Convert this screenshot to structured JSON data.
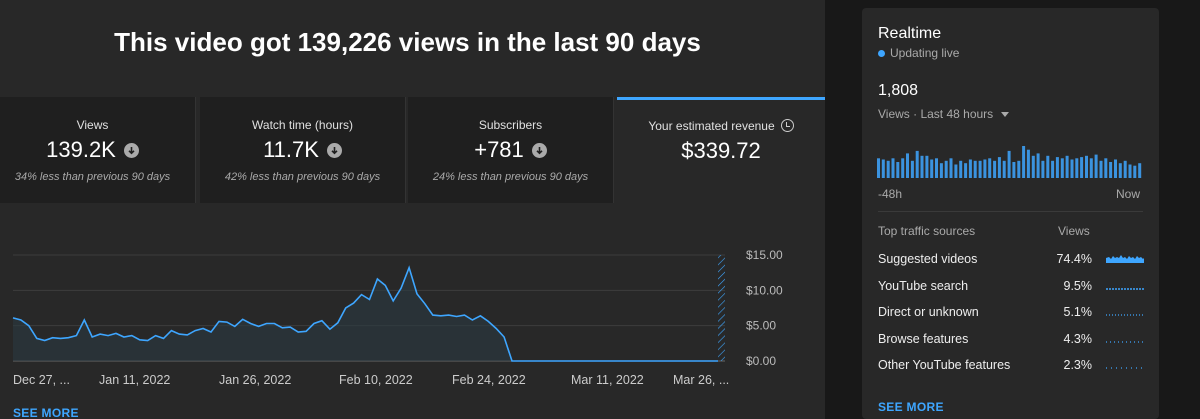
{
  "header": {
    "title": "This video got 139,226 views in the last 90 days"
  },
  "cards": [
    {
      "label": "Views",
      "value": "139.2K",
      "sub": "34% less than previous 90 days",
      "trend_icon": "arrow-down-icon"
    },
    {
      "label": "Watch time (hours)",
      "value": "11.7K",
      "sub": "42% less than previous 90 days",
      "trend_icon": "arrow-down-icon"
    },
    {
      "label": "Subscribers",
      "value": "+781",
      "sub": "24% less than previous 90 days",
      "trend_icon": "arrow-down-icon"
    },
    {
      "label": "Your estimated revenue",
      "value": "$339.72",
      "sub": "",
      "info_icon": "clock-icon",
      "selected": true
    }
  ],
  "chart_data": {
    "type": "area",
    "series": [
      {
        "color": "#3ea6ff",
        "values": [
          6.1,
          5.8,
          5.0,
          3.2,
          2.9,
          3.3,
          3.2,
          3.3,
          3.6,
          5.8,
          3.4,
          3.8,
          3.6,
          3.9,
          3.4,
          3.6,
          3.0,
          2.9,
          3.6,
          3.2,
          4.3,
          3.8,
          3.7,
          4.3,
          4.6,
          4.1,
          5.6,
          5.5,
          4.9,
          5.9,
          5.3,
          4.9,
          5.3,
          5.3,
          4.7,
          4.8,
          4.1,
          4.2,
          5.3,
          5.7,
          4.5,
          5.4,
          7.5,
          8.2,
          9.4,
          8.7,
          11.6,
          10.7,
          8.5,
          10.3,
          13.2,
          9.5,
          8.1,
          6.5,
          6.4,
          6.5,
          6.3,
          6.5,
          5.8,
          6.4,
          5.6,
          4.6,
          3.4,
          0,
          0,
          0,
          0,
          0,
          0,
          0,
          0,
          0,
          0,
          0,
          0,
          0,
          0,
          0,
          0,
          0,
          0,
          0,
          0,
          0,
          0,
          0,
          0,
          0,
          0,
          0
        ]
      }
    ],
    "ylim": [
      0,
      15
    ],
    "yticks": [
      "$15.00",
      "$10.00",
      "$5.00",
      "$0.00"
    ],
    "xticks": [
      "Dec 27, ...",
      "Jan 11, 2022",
      "Jan 26, 2022",
      "Feb 10, 2022",
      "Feb 24, 2022",
      "Mar 11, 2022",
      "Mar 26, ..."
    ],
    "grid": true
  },
  "see_more": "SEE MORE",
  "realtime": {
    "title": "Realtime",
    "status": "Updating live",
    "count": "1,808",
    "period": "Views · Last 48 hours",
    "bar_values": [
      16,
      15,
      14,
      16,
      13,
      16,
      20,
      14,
      22,
      18,
      18,
      15,
      16,
      12,
      14,
      16,
      11,
      14,
      12,
      15,
      14,
      14,
      15,
      16,
      14,
      17,
      14,
      22,
      13,
      14,
      26,
      23,
      18,
      20,
      14,
      18,
      14,
      17,
      16,
      18,
      15,
      16,
      17,
      18,
      16,
      19,
      14,
      16,
      13,
      15,
      12,
      14,
      11,
      10,
      12
    ],
    "axis_start": "-48h",
    "axis_end": "Now",
    "traffic_header": "Top traffic sources",
    "views_header": "Views",
    "traffic": [
      {
        "name": "Suggested videos",
        "pct": "74.4%"
      },
      {
        "name": "YouTube search",
        "pct": "9.5%"
      },
      {
        "name": "Direct or unknown",
        "pct": "5.1%"
      },
      {
        "name": "Browse features",
        "pct": "4.3%"
      },
      {
        "name": "Other YouTube features",
        "pct": "2.3%"
      }
    ],
    "see_more": "SEE MORE"
  }
}
